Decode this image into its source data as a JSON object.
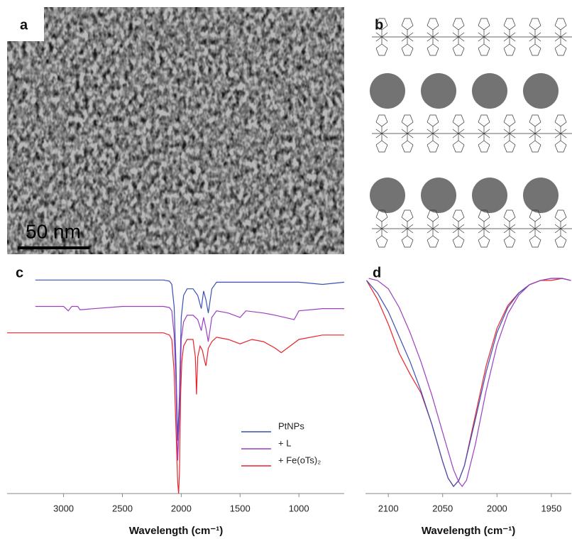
{
  "panels": {
    "a": {
      "label": "a",
      "scale_bar": "50 nm"
    },
    "b": {
      "label": "b"
    }
  },
  "chart_data": [
    {
      "type": "line",
      "label": "c",
      "x_label": "Wavelength (cm⁻¹)",
      "xlim": [
        3480,
        615
      ],
      "xticks": [
        3000,
        2500,
        2000,
        1500,
        1000
      ],
      "ylim": [
        0,
        100
      ],
      "series": [
        {
          "name": "PtNPs",
          "color": "#3b4fb8",
          "x": [
            3240,
            2500,
            2150,
            2100,
            2080,
            2060,
            2045,
            2030,
            2015,
            2000,
            1980,
            1950,
            1900,
            1860,
            1830,
            1810,
            1790,
            1770,
            1740,
            1700,
            1500,
            1200,
            1000,
            800,
            615
          ],
          "values": [
            97,
            97,
            97,
            96.5,
            95,
            85,
            60,
            24,
            45,
            80,
            90,
            93,
            93,
            90,
            84,
            92,
            88,
            82,
            93,
            96,
            96,
            96,
            96,
            95,
            96
          ]
        },
        {
          "name": "+ L",
          "color": "#9b3fc0",
          "x": [
            3240,
            3000,
            2960,
            2930,
            2880,
            2860,
            2500,
            2150,
            2100,
            2080,
            2060,
            2045,
            2030,
            2015,
            2000,
            1980,
            1950,
            1900,
            1860,
            1830,
            1810,
            1790,
            1770,
            1740,
            1700,
            1600,
            1500,
            1450,
            1300,
            1200,
            1040,
            1000,
            800,
            615
          ],
          "values": [
            85,
            85,
            83,
            85,
            85,
            83.5,
            85,
            85,
            84.5,
            83,
            72,
            50,
            15,
            35,
            70,
            78,
            81,
            81,
            79,
            74,
            80,
            75,
            69,
            80,
            83,
            82,
            80,
            83,
            82,
            81,
            79,
            83,
            84,
            84
          ]
        },
        {
          "name": "+ Fe(oTs)₂",
          "color": "#e8242a",
          "x": [
            3480,
            3000,
            2500,
            2150,
            2100,
            2080,
            2060,
            2045,
            2030,
            2022,
            2015,
            2005,
            1995,
            1980,
            1950,
            1900,
            1880,
            1870,
            1860,
            1840,
            1820,
            1800,
            1790,
            1770,
            1740,
            1700,
            1600,
            1500,
            1400,
            1300,
            1200,
            1150,
            1000,
            800,
            615
          ],
          "values": [
            73,
            73,
            73,
            73,
            72,
            70,
            55,
            30,
            5,
            0,
            10,
            45,
            60,
            67,
            70,
            70,
            62,
            45,
            62,
            67,
            65,
            60,
            58,
            66,
            69,
            71,
            70,
            68,
            70,
            69,
            66,
            64,
            70,
            72,
            72
          ]
        }
      ]
    },
    {
      "type": "line",
      "label": "d",
      "x_label": "Wavelength (cm⁻¹)",
      "xlim": [
        2121,
        1931
      ],
      "xticks": [
        2100,
        2050,
        2000,
        1950
      ],
      "ylim": [
        0,
        100
      ],
      "series": [
        {
          "color": "#e8242a",
          "x": [
            2120,
            2110,
            2100,
            2090,
            2080,
            2070,
            2060,
            2050,
            2045,
            2040,
            2035,
            2030,
            2020,
            2010,
            2000,
            1990,
            1980,
            1970,
            1960,
            1950,
            1940,
            1932
          ],
          "values": [
            99,
            90,
            78,
            64,
            54,
            45,
            30,
            12,
            4,
            0,
            3,
            10,
            34,
            58,
            76,
            87,
            93,
            97,
            99,
            99,
            100,
            99
          ]
        },
        {
          "color": "#3b4fb8",
          "x": [
            2120,
            2110,
            2100,
            2090,
            2080,
            2070,
            2060,
            2050,
            2045,
            2040,
            2035,
            2030,
            2020,
            2010,
            2000,
            1990,
            1980,
            1970,
            1960,
            1950,
            1940,
            1932
          ],
          "values": [
            99,
            93,
            84,
            72,
            60,
            46,
            30,
            12,
            4,
            0,
            3,
            10,
            32,
            55,
            74,
            86,
            93,
            97,
            99,
            100,
            100,
            99
          ]
        },
        {
          "color": "#9b3fc0",
          "x": [
            2118,
            2110,
            2100,
            2090,
            2080,
            2070,
            2060,
            2050,
            2040,
            2035,
            2032,
            2028,
            2020,
            2010,
            2000,
            1990,
            1980,
            1970,
            1960,
            1950,
            1940,
            1932
          ],
          "values": [
            100,
            99,
            95,
            86,
            74,
            60,
            44,
            26,
            8,
            2,
            0,
            3,
            20,
            46,
            68,
            83,
            92,
            97,
            99,
            100,
            100,
            99
          ]
        }
      ]
    }
  ]
}
